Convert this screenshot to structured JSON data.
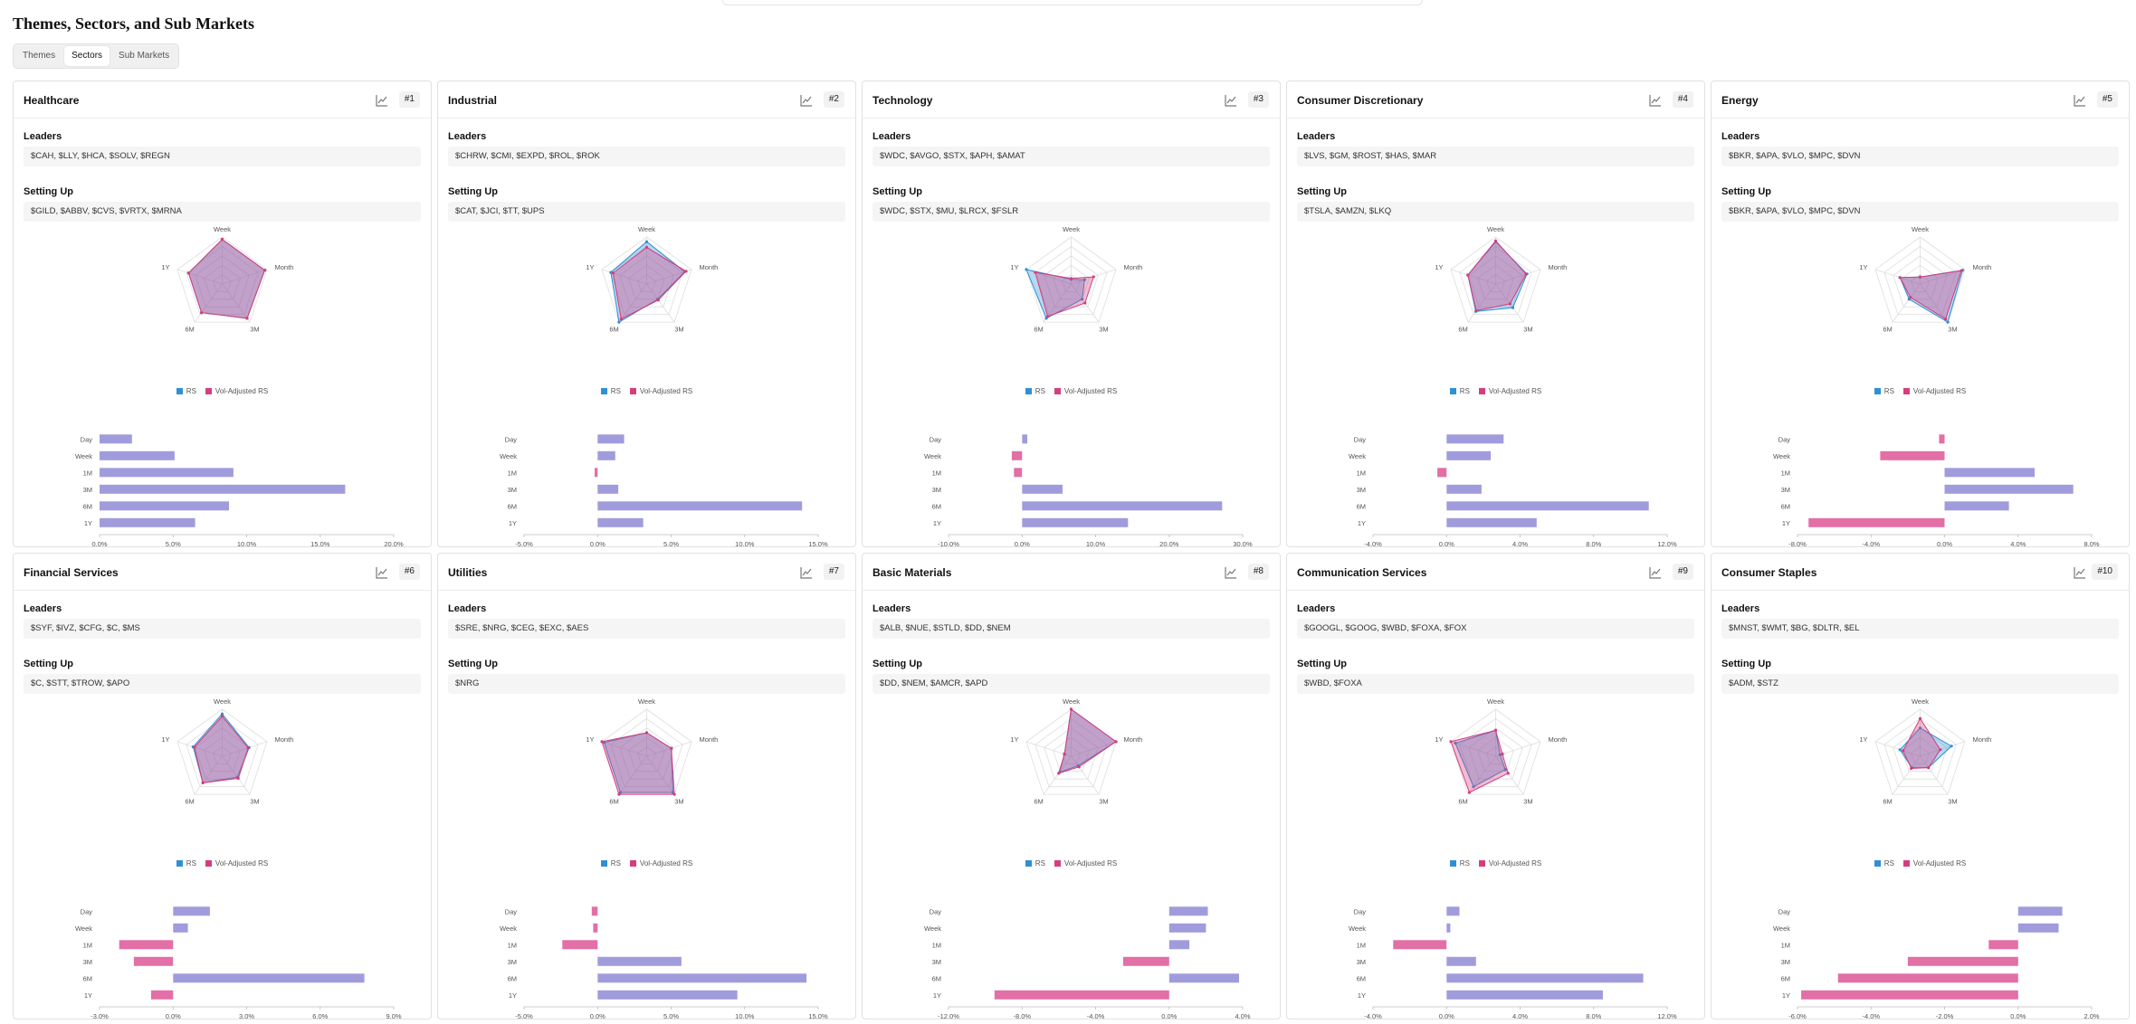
{
  "page": {
    "title": "Themes, Sectors, and Sub Markets"
  },
  "tabs": [
    {
      "label": "Themes",
      "active": false
    },
    {
      "label": "Sectors",
      "active": true
    },
    {
      "label": "Sub Markets",
      "active": false
    }
  ],
  "labels": {
    "leaders": "Leaders",
    "setting_up": "Setting Up",
    "legend_rs": "RS",
    "legend_vol": "Vol-Adjusted RS",
    "radar_axes": [
      "Week",
      "Month",
      "3M",
      "6M",
      "1Y"
    ],
    "bar_rows": [
      "Day",
      "Week",
      "1M",
      "3M",
      "6M",
      "1Y"
    ]
  },
  "colors": {
    "rs": "#2f8fd6",
    "vol": "#d63d7e",
    "bar_pos": "#a09cdc",
    "bar_neg": "#e26fa6",
    "accent": "#111111"
  },
  "sectors": [
    {
      "name": "Healthcare",
      "rank": "#1",
      "leaders": "$CAH, $LLY, $HCA, $SOLV, $REGN",
      "setting_up": "$GILD, $ABBV, $CVS, $VRTX, $MRNA",
      "radar_rs": [
        0.95,
        0.95,
        0.9,
        0.75,
        0.75
      ],
      "radar_vol": [
        0.95,
        0.95,
        0.9,
        0.75,
        0.75
      ],
      "bars": [
        2.2,
        5.1,
        9.1,
        16.7,
        8.8,
        6.5
      ],
      "axis": {
        "min": 0,
        "max": 20,
        "ticks": [
          "0.0%",
          "5.0%",
          "10.0%",
          "15.0%",
          "20.0%"
        ]
      }
    },
    {
      "name": "Industrial",
      "rank": "#2",
      "leaders": "$CHRW, $CMI, $EXPD, $ROL, $ROK",
      "setting_up": "$CAT, $JCI, $TT, $UPS",
      "radar_rs": [
        0.9,
        0.85,
        0.4,
        1.0,
        0.8
      ],
      "radar_vol": [
        0.78,
        0.88,
        0.42,
        0.92,
        0.75
      ],
      "bars": [
        1.8,
        1.2,
        -0.2,
        1.4,
        13.9,
        3.1
      ],
      "axis": {
        "min": -5,
        "max": 15,
        "ticks": [
          "-5.0%",
          "0.0%",
          "5.0%",
          "10.0%",
          "15.0%"
        ]
      }
    },
    {
      "name": "Technology",
      "rank": "#3",
      "leaders": "$WDC, $AVGO, $STX, $APH, $AMAT",
      "setting_up": "$WDC, $STX, $MU, $LRCX, $FSLR",
      "radar_rs": [
        0.1,
        0.3,
        0.4,
        0.9,
        1.0
      ],
      "radar_vol": [
        0.12,
        0.5,
        0.5,
        0.85,
        0.8
      ],
      "bars": [
        0.7,
        -1.4,
        -1.1,
        5.5,
        27.2,
        14.4
      ],
      "axis": {
        "min": -10,
        "max": 30,
        "ticks": [
          "-10.0%",
          "0.0%",
          "10.0%",
          "20.0%",
          "30.0%"
        ]
      }
    },
    {
      "name": "Consumer Discretionary",
      "rank": "#4",
      "leaders": "$LVS, $GM, $ROST, $HAS, $MAR",
      "setting_up": "$TSLA, $AMZN, $LKQ",
      "radar_rs": [
        0.9,
        0.7,
        0.62,
        0.72,
        0.62
      ],
      "radar_vol": [
        0.92,
        0.68,
        0.52,
        0.7,
        0.62
      ],
      "bars": [
        3.1,
        2.4,
        -0.5,
        1.9,
        11.0,
        4.9
      ],
      "axis": {
        "min": -4,
        "max": 12,
        "ticks": [
          "-4.0%",
          "0.0%",
          "4.0%",
          "8.0%",
          "12.0%"
        ]
      }
    },
    {
      "name": "Energy",
      "rank": "#5",
      "leaders": "$BKR, $APA, $VLO, $MPC, $DVN",
      "setting_up": "$BKR, $APA, $VLO, $MPC, $DVN",
      "radar_rs": [
        0.15,
        0.95,
        1.0,
        0.4,
        0.45
      ],
      "radar_vol": [
        0.15,
        0.92,
        0.92,
        0.35,
        0.45
      ],
      "bars": [
        -0.3,
        -3.5,
        4.9,
        7.0,
        3.5,
        -7.4
      ],
      "axis": {
        "min": -8,
        "max": 8,
        "ticks": [
          "-8.0%",
          "-4.0%",
          "0.0%",
          "4.0%",
          "8.0%"
        ]
      }
    },
    {
      "name": "Financial Services",
      "rank": "#6",
      "leaders": "$SYF, $IVZ, $CFG, $C, $MS",
      "setting_up": "$C, $STT, $TROW, $APO",
      "radar_rs": [
        0.9,
        0.6,
        0.55,
        0.7,
        0.65
      ],
      "radar_vol": [
        0.85,
        0.58,
        0.58,
        0.7,
        0.62
      ],
      "bars": [
        1.5,
        0.6,
        -2.2,
        -1.6,
        7.8,
        -0.9
      ],
      "axis": {
        "min": -3,
        "max": 9,
        "ticks": [
          "-3.0%",
          "0.0%",
          "3.0%",
          "6.0%",
          "9.0%"
        ]
      }
    },
    {
      "name": "Utilities",
      "rank": "#7",
      "leaders": "$SRE, $NRG, $CEG, $EXC, $AES",
      "setting_up": "$NRG",
      "radar_rs": [
        0.5,
        0.55,
        0.95,
        0.95,
        0.95
      ],
      "radar_vol": [
        0.5,
        0.55,
        1.0,
        1.0,
        1.0
      ],
      "bars": [
        -0.4,
        -0.3,
        -2.4,
        5.7,
        14.2,
        9.5
      ],
      "axis": {
        "min": -5,
        "max": 15,
        "ticks": [
          "-5.0%",
          "0.0%",
          "5.0%",
          "10.0%",
          "15.0%"
        ]
      }
    },
    {
      "name": "Basic Materials",
      "rank": "#8",
      "leaders": "$ALB, $NUE, $STLD, $DD, $NEM",
      "setting_up": "$DD, $NEM, $AMCR, $APD",
      "radar_rs": [
        1.0,
        1.0,
        0.25,
        0.42,
        0.15
      ],
      "radar_vol": [
        1.0,
        1.0,
        0.28,
        0.45,
        0.15
      ],
      "bars": [
        2.1,
        2.0,
        1.1,
        -2.5,
        3.8,
        -9.5
      ],
      "axis": {
        "min": -12,
        "max": 4,
        "ticks": [
          "-12.0%",
          "-8.0%",
          "-4.0%",
          "0.0%",
          "4.0%"
        ]
      }
    },
    {
      "name": "Communication Services",
      "rank": "#9",
      "leaders": "$GOOGL, $GOOG, $WBD, $FOXA, $FOX",
      "setting_up": "$WBD, $FOXA",
      "radar_rs": [
        0.55,
        0.1,
        0.35,
        0.8,
        0.9
      ],
      "radar_vol": [
        0.55,
        0.15,
        0.45,
        0.95,
        1.0
      ],
      "bars": [
        0.7,
        0.2,
        -2.9,
        1.6,
        10.7,
        8.5
      ],
      "axis": {
        "min": -4,
        "max": 12,
        "ticks": [
          "-4.0%",
          "0.0%",
          "4.0%",
          "8.0%",
          "12.0%"
        ]
      }
    },
    {
      "name": "Consumer Staples",
      "rank": "#10",
      "leaders": "$MNST, $WMT, $BG, $DLTR, $EL",
      "setting_up": "$ADM, $STZ",
      "radar_rs": [
        0.6,
        0.7,
        0.3,
        0.3,
        0.45
      ],
      "radar_vol": [
        0.8,
        0.45,
        0.3,
        0.32,
        0.38
      ],
      "bars": [
        1.2,
        1.1,
        -0.8,
        -3.0,
        -4.9,
        -5.9
      ],
      "axis": {
        "min": -6,
        "max": 2,
        "ticks": [
          "-6.0%",
          "-4.0%",
          "-2.0%",
          "0.0%",
          "2.0%"
        ]
      }
    }
  ]
}
